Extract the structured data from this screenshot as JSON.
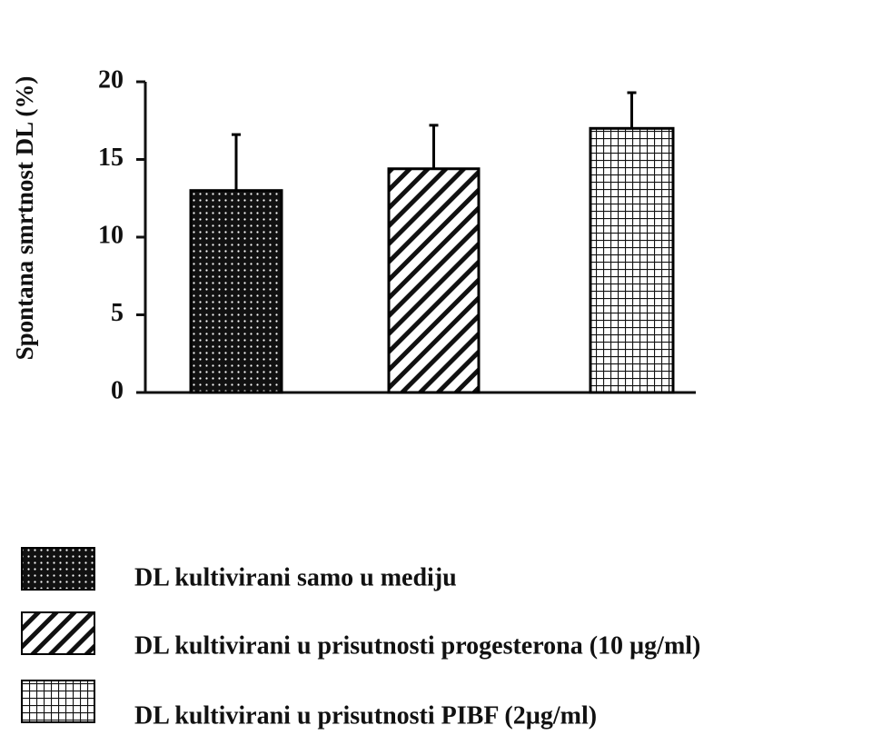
{
  "chart_data": {
    "type": "bar",
    "ylabel": "Spontana smrtnost DL (%)",
    "ylim": [
      0,
      20
    ],
    "yticks": [
      0,
      5,
      10,
      15,
      20
    ],
    "error_bars": true,
    "series": [
      {
        "name": "DL kultivirani samo u mediju",
        "color": "#000000",
        "pattern": "dots",
        "values": [
          13
        ],
        "errors": [
          3.6
        ]
      },
      {
        "name": "DL kultivirani u prisutnosti progesterona (10 µg/ml)",
        "color": "#000000",
        "pattern": "hatch",
        "values": [
          14.4
        ],
        "errors": [
          2.8
        ]
      },
      {
        "name": "DL kultivirani u prisutnosti PIBF (2µg/ml)",
        "color": "#000000",
        "pattern": "grid",
        "values": [
          17
        ],
        "errors": [
          2.3
        ]
      }
    ]
  }
}
